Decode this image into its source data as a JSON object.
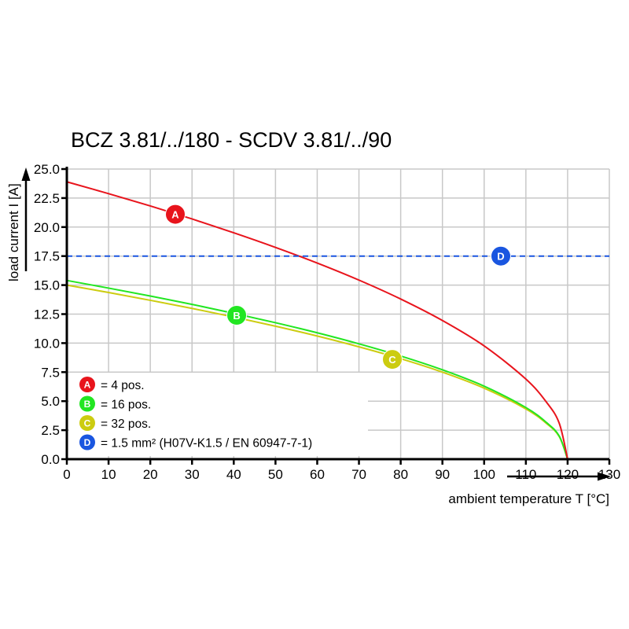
{
  "chart_data": {
    "type": "line",
    "title": "BCZ 3.81/../180 - SCDV 3.81/../90",
    "xlabel": "ambient temperature T [°C]",
    "ylabel": "load current I [A]",
    "xlim": [
      0,
      130
    ],
    "ylim": [
      0,
      25
    ],
    "xticks": [
      "0",
      "10",
      "20",
      "30",
      "40",
      "50",
      "60",
      "70",
      "80",
      "90",
      "100",
      "110",
      "120",
      "130"
    ],
    "yticks": [
      "0.0",
      "2.5",
      "5.0",
      "7.5",
      "10.0",
      "12.5",
      "15.0",
      "17.5",
      "20.0",
      "22.5",
      "25.0"
    ],
    "grid": true,
    "legend_placement": "bottom-left",
    "x": [
      0,
      10,
      20,
      30,
      40,
      50,
      60,
      70,
      80,
      90,
      100,
      110,
      115,
      118,
      120
    ],
    "series": [
      {
        "marker": "A",
        "label": "= 4 pos.",
        "color": "#e8141c",
        "style": "solid",
        "marker_at": [
          26,
          21.1
        ],
        "values": [
          23.9,
          22.88,
          21.82,
          20.7,
          19.51,
          18.25,
          16.9,
          15.43,
          13.8,
          11.95,
          9.76,
          6.9,
          4.88,
          3.09,
          0
        ]
      },
      {
        "marker": "B",
        "label": "= 16 pos.",
        "color": "#22e622",
        "style": "solid",
        "marker_at": [
          40.7,
          12.4
        ],
        "values": [
          15.4,
          14.74,
          14.06,
          13.34,
          12.57,
          11.76,
          10.89,
          9.94,
          8.89,
          7.7,
          6.29,
          4.45,
          3.14,
          1.99,
          0
        ]
      },
      {
        "marker": "C",
        "label": "= 32 pos.",
        "color": "#cccc10",
        "style": "solid",
        "marker_at": [
          78,
          8.6
        ],
        "values": [
          15.0,
          14.36,
          13.69,
          12.99,
          12.25,
          11.46,
          10.61,
          9.68,
          8.66,
          7.5,
          6.12,
          4.33,
          3.06,
          1.94,
          0
        ]
      },
      {
        "marker": "D",
        "label": "= 1.5 mm² (H07V-K1.5 / EN 60947-7-1)",
        "color": "#1a56e0",
        "style": "dashed",
        "marker_at": [
          104,
          17.5
        ],
        "values": [
          17.5,
          17.5,
          17.5,
          17.5,
          17.5,
          17.5,
          17.5,
          17.5,
          17.5,
          17.5,
          17.5,
          17.5,
          17.5,
          17.5,
          17.5
        ],
        "x_extent": [
          0,
          130
        ]
      }
    ]
  }
}
